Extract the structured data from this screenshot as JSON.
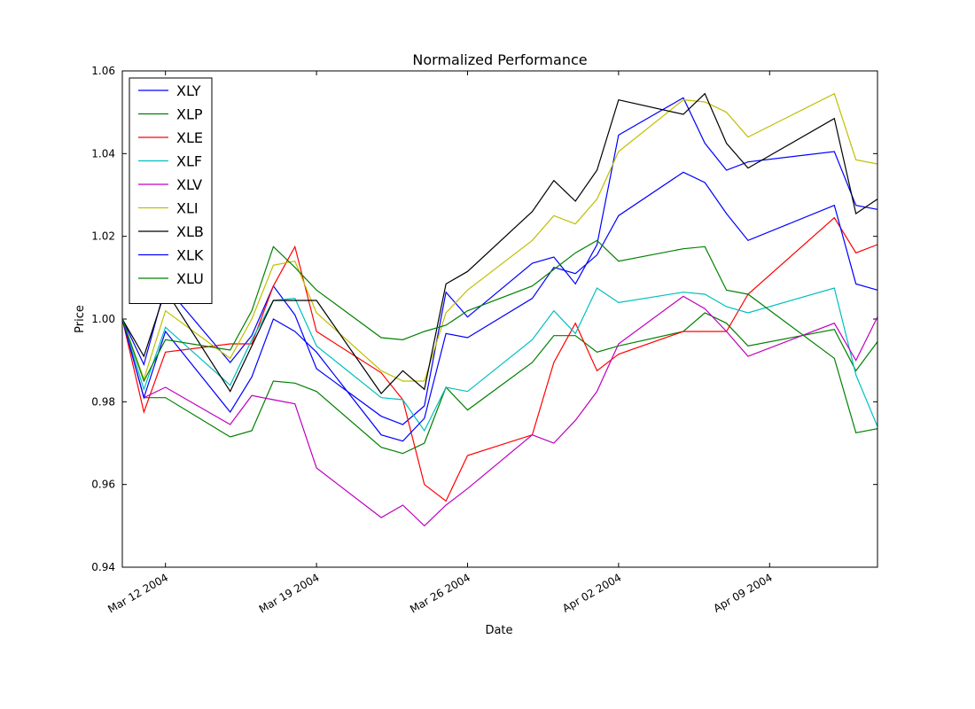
{
  "chart_data": {
    "type": "line",
    "title": "Normalized Performance",
    "xlabel": "Date",
    "ylabel": "Price",
    "x": [
      "2004-03-10",
      "2004-03-11",
      "2004-03-12",
      "2004-03-15",
      "2004-03-16",
      "2004-03-17",
      "2004-03-18",
      "2004-03-19",
      "2004-03-22",
      "2004-03-23",
      "2004-03-24",
      "2004-03-25",
      "2004-03-26",
      "2004-03-29",
      "2004-03-30",
      "2004-03-31",
      "2004-04-01",
      "2004-04-02",
      "2004-04-05",
      "2004-04-06",
      "2004-04-07",
      "2004-04-08",
      "2004-04-12",
      "2004-04-13",
      "2004-04-14"
    ],
    "xlim": [
      "2004-03-10",
      "2004-04-14"
    ],
    "xticks": [
      {
        "value": "2004-03-12",
        "label": "Mar 12 2004"
      },
      {
        "value": "2004-03-19",
        "label": "Mar 19 2004"
      },
      {
        "value": "2004-03-26",
        "label": "Mar 26 2004"
      },
      {
        "value": "2004-04-02",
        "label": "Apr 02 2004"
      },
      {
        "value": "2004-04-09",
        "label": "Apr 09 2004"
      }
    ],
    "ylim": [
      0.94,
      1.06
    ],
    "yticks": [
      0.94,
      0.96,
      0.98,
      {
        "value": 1,
        "label": "1.00"
      },
      1.02,
      1.04,
      1.06
    ],
    "legend": "upper left",
    "series": [
      {
        "name": "XLY",
        "color": "#0000ff",
        "values": [
          1.0,
          0.989,
          1.008,
          0.9895,
          0.996,
          1.008,
          1.001,
          0.988,
          0.9765,
          0.9745,
          0.979,
          1.0065,
          1.0005,
          1.0135,
          1.015,
          1.0085,
          1.018,
          1.0445,
          1.0535,
          1.0425,
          1.036,
          1.038,
          1.0405,
          1.0275,
          1.0265
        ]
      },
      {
        "name": "XLP",
        "color": "#008000",
        "values": [
          1.0,
          0.981,
          0.981,
          0.9715,
          0.973,
          0.985,
          0.9845,
          0.9825,
          0.969,
          0.9675,
          0.97,
          0.9835,
          0.978,
          0.9895,
          0.996,
          0.996,
          0.992,
          0.9935,
          0.997,
          1.0015,
          0.999,
          0.9935,
          0.9975,
          0.9875,
          0.9945
        ]
      },
      {
        "name": "XLE",
        "color": "#ff0000",
        "values": [
          1.0,
          0.9775,
          0.992,
          0.994,
          0.994,
          1.008,
          1.0175,
          0.997,
          0.987,
          0.9805,
          0.96,
          0.956,
          0.967,
          0.972,
          0.9895,
          0.999,
          0.9875,
          0.9915,
          0.997,
          0.997,
          0.997,
          1.006,
          1.0245,
          1.016,
          1.018
        ]
      },
      {
        "name": "XLF",
        "color": "#00bfbf",
        "values": [
          1.0,
          0.983,
          0.998,
          0.984,
          0.995,
          1.0045,
          1.005,
          0.9935,
          0.981,
          0.9805,
          0.973,
          0.9835,
          0.9825,
          0.995,
          1.002,
          0.9965,
          1.0075,
          1.004,
          1.0065,
          1.006,
          1.003,
          1.0015,
          1.0075,
          0.9865,
          0.974
        ]
      },
      {
        "name": "XLV",
        "color": "#bf00bf",
        "values": [
          1.0,
          0.981,
          0.9835,
          0.9745,
          0.9815,
          0.9805,
          0.9795,
          0.964,
          0.952,
          0.955,
          0.95,
          0.955,
          0.959,
          0.972,
          0.97,
          0.9755,
          0.9825,
          0.994,
          1.0055,
          1.0025,
          0.997,
          0.991,
          0.999,
          0.99,
          1.0005
        ]
      },
      {
        "name": "XLI",
        "color": "#bfbf00",
        "values": [
          1.0,
          0.9855,
          1.002,
          0.9905,
          1.0,
          1.013,
          1.014,
          1.0015,
          0.9875,
          0.985,
          0.985,
          1.0015,
          1.007,
          1.019,
          1.025,
          1.023,
          1.029,
          1.0405,
          1.053,
          1.0525,
          1.05,
          1.044,
          1.0545,
          1.0385,
          1.0375
        ]
      },
      {
        "name": "XLB",
        "color": "#000000",
        "values": [
          1.0,
          0.991,
          1.007,
          0.9825,
          0.9935,
          1.0045,
          1.0045,
          1.0045,
          0.982,
          0.9875,
          0.983,
          1.0085,
          1.0115,
          1.026,
          1.0335,
          1.0285,
          1.036,
          1.053,
          1.0495,
          1.0545,
          1.0425,
          1.0365,
          1.0485,
          1.0255,
          1.029
        ]
      },
      {
        "name": "XLK",
        "color": "#0000ff",
        "values": [
          1.0,
          0.981,
          0.997,
          0.9775,
          0.986,
          1.0,
          0.997,
          0.992,
          0.972,
          0.9705,
          0.976,
          0.9965,
          0.9955,
          1.005,
          1.0125,
          1.011,
          1.0155,
          1.025,
          1.0355,
          1.033,
          1.0255,
          1.019,
          1.0275,
          1.0085,
          1.007
        ]
      },
      {
        "name": "XLU",
        "color": "#008000",
        "values": [
          1.0,
          0.985,
          0.995,
          0.9925,
          1.002,
          1.0175,
          1.0125,
          1.007,
          0.9955,
          0.995,
          0.997,
          0.9985,
          1.002,
          1.008,
          1.012,
          1.016,
          1.019,
          1.014,
          1.017,
          1.0175,
          1.007,
          1.006,
          0.9905,
          0.9725,
          0.9735
        ]
      }
    ]
  }
}
